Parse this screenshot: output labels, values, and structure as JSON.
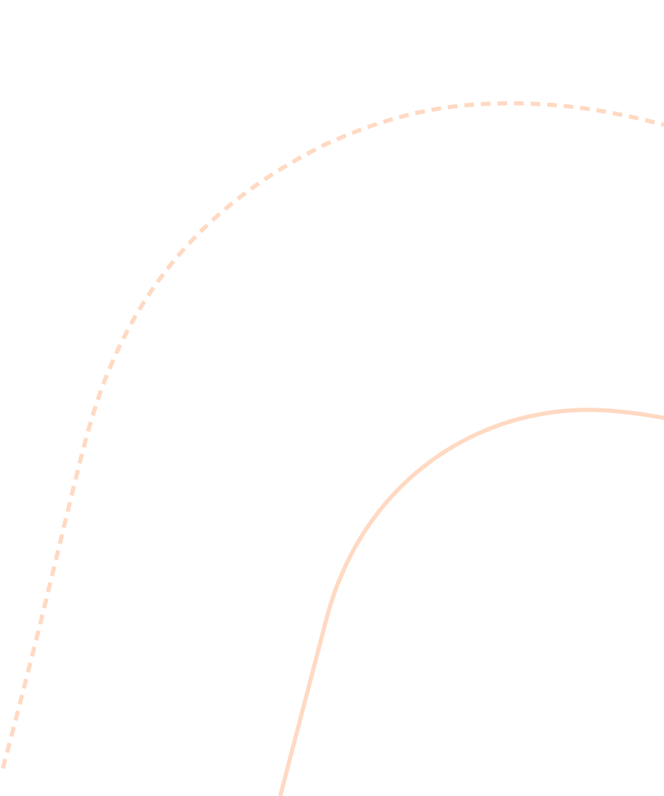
{
  "colors": {
    "background": "#ffffff",
    "curve_stroke": "#ffd9c2"
  },
  "decoration": {
    "dashed_curve": "dashed-arc",
    "solid_curve": "solid-arc"
  }
}
